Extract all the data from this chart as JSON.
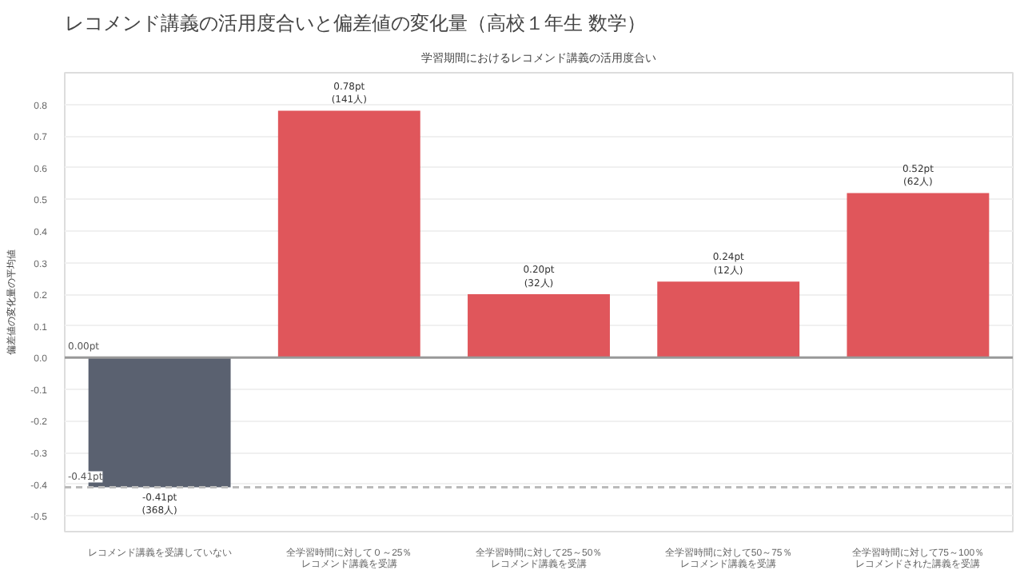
{
  "chart_data": {
    "type": "bar",
    "title": "レコメンド講義の活用度合いと偏差値の変化量（高校１年生 数学）",
    "subtitle": "学習期間におけるレコメンド講義の活用度合い",
    "ylabel": "偏差値の変化量の平均値",
    "categories": [
      "レコメンド講義を受講していない",
      "全学習時間に対して０～25％レコメンド講義を受講",
      "全学習時間に対して25～50％レコメンド講義を受講",
      "全学習時間に対して50～75％レコメンド講義を受講",
      "全学習時間に対して75～100％レコメンドされた講義を受講"
    ],
    "values": [
      -0.41,
      0.78,
      0.2,
      0.24,
      0.52
    ],
    "colors": [
      "#5a6170",
      "#e0565b",
      "#e0565b",
      "#e0565b",
      "#e0565b"
    ],
    "value_labels": [
      "-0.41pt\n(368人)",
      "0.78pt\n(141人)",
      "0.20pt\n(32人)",
      "0.24pt\n(12人)",
      "0.52pt\n(62人)"
    ],
    "ylim": [
      -0.55,
      0.9
    ],
    "yticks": [
      -0.5,
      -0.4,
      -0.3,
      -0.2,
      -0.1,
      {
        "value": 0.0,
        "label": "0.0"
      },
      0.1,
      0.2,
      0.3,
      0.4,
      0.5,
      0.6,
      0.7,
      0.8
    ],
    "ref_lines": [
      {
        "axis": "y",
        "value": 0.0,
        "label": "0.00pt",
        "color": "#999999",
        "line_style": "solid"
      },
      {
        "axis": "y",
        "value": -0.41,
        "label": "-0.41pt",
        "color": "#bbbbbb",
        "line_style": "dashed"
      }
    ],
    "grid": "y"
  }
}
